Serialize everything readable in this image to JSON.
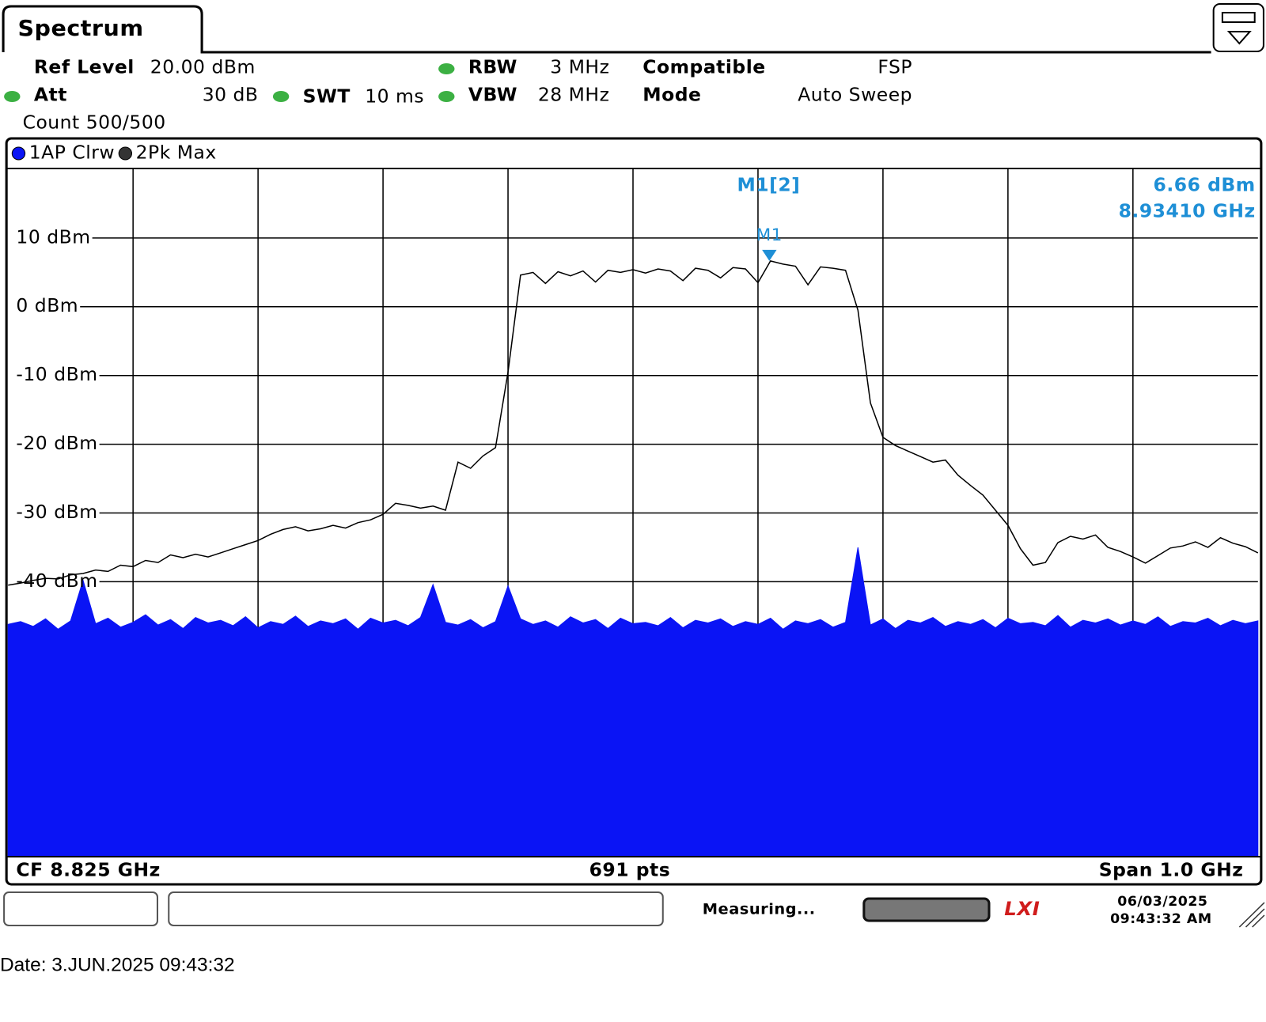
{
  "header": {
    "tab": "Spectrum",
    "ref_level_label": "Ref Level",
    "ref_level": "20.00 dBm",
    "att_label": "Att",
    "att": "30 dB",
    "swt_label": "SWT",
    "swt": "10 ms",
    "rbw_label": "RBW",
    "rbw": "3 MHz",
    "vbw_label": "VBW",
    "vbw": "28 MHz",
    "compatible_label": "Compatible",
    "compatible": "FSP",
    "mode_label": "Mode",
    "mode": "Auto Sweep",
    "count": "Count 500/500"
  },
  "chart_data": {
    "type": "line",
    "xlim": [
      8.325,
      9.325
    ],
    "ylim": [
      -80,
      20
    ],
    "yticks": [
      {
        "value": 10,
        "label": "10 dBm"
      },
      {
        "value": 0,
        "label": "0 dBm"
      },
      {
        "value": -10,
        "label": "-10 dBm"
      },
      {
        "value": -20,
        "label": "-20 dBm"
      },
      {
        "value": -30,
        "label": "-30 dBm"
      },
      {
        "value": -40,
        "label": "-40 dBm"
      }
    ],
    "grid": true,
    "x": [
      8.325,
      8.335,
      8.345,
      8.355,
      8.365,
      8.375,
      8.385,
      8.395,
      8.405,
      8.415,
      8.425,
      8.435,
      8.445,
      8.455,
      8.465,
      8.475,
      8.485,
      8.495,
      8.505,
      8.515,
      8.525,
      8.535,
      8.545,
      8.555,
      8.565,
      8.575,
      8.585,
      8.595,
      8.605,
      8.615,
      8.625,
      8.635,
      8.645,
      8.655,
      8.665,
      8.675,
      8.685,
      8.695,
      8.705,
      8.715,
      8.725,
      8.735,
      8.745,
      8.755,
      8.765,
      8.775,
      8.785,
      8.795,
      8.805,
      8.815,
      8.825,
      8.835,
      8.845,
      8.855,
      8.865,
      8.875,
      8.885,
      8.895,
      8.905,
      8.915,
      8.925,
      8.935,
      8.945,
      8.955,
      8.965,
      8.975,
      8.985,
      8.995,
      9.005,
      9.015,
      9.025,
      9.035,
      9.045,
      9.055,
      9.065,
      9.075,
      9.085,
      9.095,
      9.105,
      9.115,
      9.125,
      9.135,
      9.145,
      9.155,
      9.165,
      9.175,
      9.185,
      9.195,
      9.205,
      9.215,
      9.225,
      9.235,
      9.245,
      9.255,
      9.265,
      9.275,
      9.285,
      9.295,
      9.305,
      9.315,
      9.325
    ],
    "series": [
      {
        "name": "1AP Clrw",
        "color": "#0a14f5",
        "fill": true,
        "values": [
          -46.2,
          -45.8,
          -46.5,
          -45.4,
          -46.9,
          -45.7,
          -39.8,
          -46.1,
          -45.3,
          -46.6,
          -45.9,
          -44.8,
          -46.3,
          -45.5,
          -46.8,
          -45.2,
          -46.0,
          -45.6,
          -46.4,
          -45.1,
          -46.7,
          -45.8,
          -46.2,
          -45.0,
          -46.5,
          -45.7,
          -46.1,
          -45.4,
          -46.9,
          -45.3,
          -46.0,
          -45.6,
          -46.4,
          -45.2,
          -40.4,
          -45.9,
          -46.3,
          -45.5,
          -46.7,
          -45.8,
          -40.6,
          -45.4,
          -46.2,
          -45.7,
          -46.6,
          -45.1,
          -46.0,
          -45.5,
          -46.8,
          -45.3,
          -46.1,
          -45.9,
          -46.4,
          -45.2,
          -46.7,
          -45.6,
          -46.0,
          -45.4,
          -46.5,
          -45.8,
          -46.2,
          -45.3,
          -46.9,
          -45.7,
          -46.1,
          -45.5,
          -46.6,
          -45.9,
          -35.0,
          -46.3,
          -45.4,
          -46.8,
          -45.6,
          -46.0,
          -45.2,
          -46.5,
          -45.8,
          -46.2,
          -45.5,
          -46.7,
          -45.3,
          -46.1,
          -45.9,
          -46.4,
          -44.9,
          -46.6,
          -45.6,
          -46.0,
          -45.4,
          -46.3,
          -45.7,
          -46.2,
          -45.1,
          -46.5,
          -45.8,
          -46.0,
          -45.3,
          -46.4,
          -45.6,
          -46.1,
          -45.7
        ]
      },
      {
        "name": "2Pk Max",
        "color": "#000000",
        "fill": false,
        "values": [
          -40.5,
          -40.2,
          -39.8,
          -39.5,
          -39.6,
          -39.0,
          -38.8,
          -38.3,
          -38.5,
          -37.6,
          -37.8,
          -36.9,
          -37.2,
          -36.1,
          -36.5,
          -36.0,
          -36.4,
          -35.8,
          -35.2,
          -34.6,
          -34.0,
          -33.1,
          -32.4,
          -32.0,
          -32.6,
          -32.3,
          -31.8,
          -32.2,
          -31.4,
          -31.0,
          -30.2,
          -28.6,
          -28.9,
          -29.3,
          -29.0,
          -29.6,
          -22.6,
          -23.5,
          -21.7,
          -20.5,
          -9.5,
          4.6,
          5.0,
          3.4,
          5.1,
          4.5,
          5.2,
          3.6,
          5.3,
          5.0,
          5.4,
          4.9,
          5.5,
          5.2,
          3.8,
          5.6,
          5.3,
          4.2,
          5.7,
          5.5,
          3.5,
          6.66,
          6.2,
          5.9,
          3.2,
          5.8,
          5.6,
          5.3,
          -0.5,
          -14.0,
          -19.0,
          -20.2,
          -21.0,
          -21.8,
          -22.6,
          -22.3,
          -24.5,
          -26.0,
          -27.4,
          -29.6,
          -31.8,
          -35.2,
          -37.6,
          -37.2,
          -34.3,
          -33.4,
          -33.8,
          -33.2,
          -35.0,
          -35.6,
          -36.4,
          -37.3,
          -36.2,
          -35.1,
          -34.8,
          -34.2,
          -35.0,
          -33.6,
          -34.4,
          -34.9,
          -35.8
        ]
      }
    ],
    "markers": [
      {
        "label": "M1",
        "name": "M1[2]",
        "x": 8.9341,
        "value": 6.66,
        "value_label": "6.66 dBm",
        "x_label": "8.93410 GHz",
        "color": "#1e8fd6"
      }
    ],
    "footer_left": "CF 8.825 GHz",
    "footer_center": "691 pts",
    "footer_right": "Span 1.0 GHz"
  },
  "status": {
    "text": "Measuring...",
    "logo": "LXI",
    "date": "06/03/2025",
    "time": "09:43:32 AM"
  },
  "date_line": "Date: 3.JUN.2025  09:43:32"
}
